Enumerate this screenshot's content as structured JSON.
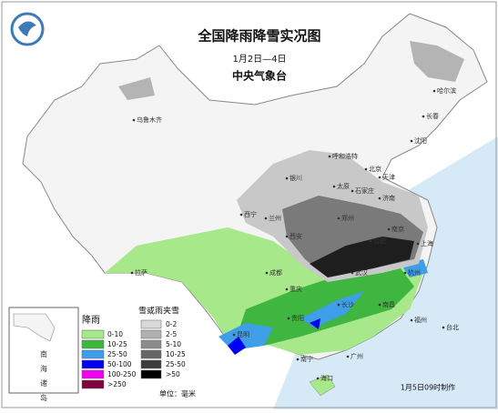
{
  "header": {
    "title": "全国降雨降雪实况图",
    "date_range": "1月2日—4日",
    "agency": "中央气象台"
  },
  "cities": [
    "乌鲁木齐",
    "哈尔滨",
    "长春",
    "沈阳",
    "呼和浩特",
    "北京",
    "天津",
    "石家庄",
    "太原",
    "济南",
    "银川",
    "兰州",
    "西宁",
    "西安",
    "郑州",
    "南京",
    "合肥",
    "上海",
    "武汉",
    "杭州",
    "成都",
    "重庆",
    "长沙",
    "南昌",
    "福州",
    "台北",
    "贵阳",
    "昆明",
    "南宁",
    "广州",
    "海口",
    "拉萨"
  ],
  "inset": {
    "label": "南海诸岛"
  },
  "legend": {
    "rain": {
      "title": "降雨",
      "items": [
        {
          "label": "0-10",
          "color": "#a6e88a"
        },
        {
          "label": "10-25",
          "color": "#3fb63f"
        },
        {
          "label": "25-50",
          "color": "#3f9ee8"
        },
        {
          "label": "50-100",
          "color": "#0000f0"
        },
        {
          "label": "100-250",
          "color": "#f000f0"
        },
        {
          "label": ">250",
          "color": "#800040"
        }
      ]
    },
    "snow": {
      "title": "雪或雨夹雪",
      "items": [
        {
          "label": "0-2",
          "color": "#d8d8d8"
        },
        {
          "label": "2-5",
          "color": "#b0b0b0"
        },
        {
          "label": "5-10",
          "color": "#8c8c8c"
        },
        {
          "label": "10-25",
          "color": "#666666"
        },
        {
          "label": "25-50",
          "color": "#3c3c3c"
        },
        {
          "label": ">50",
          "color": "#000000"
        }
      ]
    },
    "unit": "单位：毫米"
  },
  "footer": {
    "made": "1月5日09时制作"
  }
}
